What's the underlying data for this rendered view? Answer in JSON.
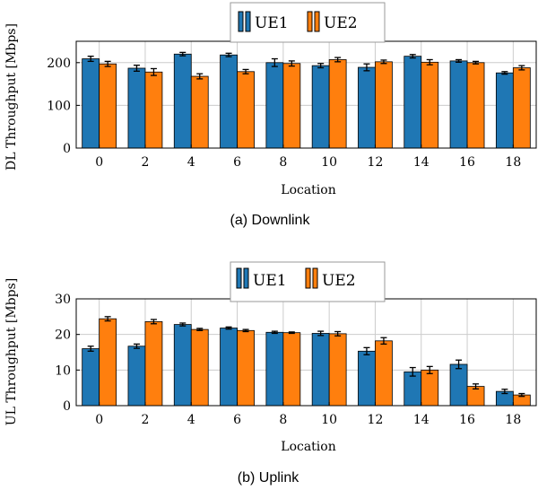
{
  "figure": {
    "caption_a": "(a) Downlink",
    "caption_b": "(b) Uplink"
  },
  "colors": {
    "ue1": "#1f77b4",
    "ue2": "#ff7f0e",
    "grid": "#cccccc",
    "axis": "#000000"
  },
  "chart_data": [
    {
      "type": "bar",
      "title": "",
      "xlabel": "Location",
      "ylabel": "DL Throughput [Mbps]",
      "categories": [
        "0",
        "2",
        "4",
        "6",
        "8",
        "10",
        "12",
        "14",
        "16",
        "18"
      ],
      "ylim": [
        0,
        250
      ],
      "yticks": [
        0,
        100,
        200
      ],
      "grid": true,
      "legend_position": "top-center",
      "series": [
        {
          "name": "UE1",
          "values": [
            209,
            187,
            220,
            218,
            200,
            193,
            189,
            215,
            204,
            176
          ],
          "errors": [
            6,
            7,
            4,
            4,
            9,
            5,
            8,
            4,
            3,
            3
          ]
        },
        {
          "name": "UE2",
          "values": [
            197,
            178,
            168,
            179,
            198,
            207,
            202,
            201,
            200,
            188
          ],
          "errors": [
            6,
            8,
            6,
            5,
            6,
            5,
            4,
            6,
            3,
            5
          ]
        }
      ]
    },
    {
      "type": "bar",
      "title": "",
      "xlabel": "Location",
      "ylabel": "UL Throughput [Mbps]",
      "categories": [
        "0",
        "2",
        "4",
        "6",
        "8",
        "10",
        "12",
        "14",
        "16",
        "18"
      ],
      "ylim": [
        0,
        30
      ],
      "yticks": [
        0,
        10,
        20,
        30
      ],
      "grid": true,
      "legend_position": "top-center",
      "series": [
        {
          "name": "UE1",
          "values": [
            16.0,
            16.7,
            22.8,
            21.8,
            20.6,
            20.3,
            15.3,
            9.5,
            11.6,
            4.0
          ],
          "errors": [
            0.7,
            0.6,
            0.4,
            0.3,
            0.3,
            0.6,
            1.0,
            1.2,
            1.2,
            0.6
          ]
        },
        {
          "name": "UE2",
          "values": [
            24.4,
            23.6,
            21.4,
            21.1,
            20.5,
            20.2,
            18.2,
            10.0,
            5.4,
            3.0
          ],
          "errors": [
            0.6,
            0.6,
            0.3,
            0.3,
            0.2,
            0.6,
            0.9,
            1.0,
            0.7,
            0.4
          ]
        }
      ]
    }
  ]
}
